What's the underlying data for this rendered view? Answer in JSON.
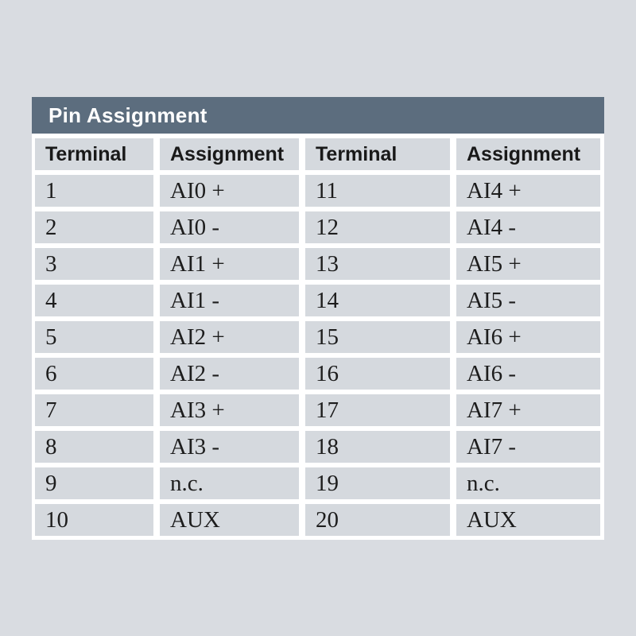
{
  "title": "Pin Assignment",
  "table": {
    "headers": [
      "Terminal",
      "Assignment",
      "Terminal",
      "Assignment"
    ],
    "rows": [
      [
        "1",
        "AI0 +",
        "11",
        "AI4 +"
      ],
      [
        "2",
        "AI0 -",
        "12",
        "AI4 -"
      ],
      [
        "3",
        "AI1 +",
        "13",
        "AI5 +"
      ],
      [
        "4",
        "AI1 -",
        "14",
        "AI5 -"
      ],
      [
        "5",
        "AI2 +",
        "15",
        "AI6 +"
      ],
      [
        "6",
        "AI2 -",
        "16",
        "AI6 -"
      ],
      [
        "7",
        "AI3 +",
        "17",
        "AI7 +"
      ],
      [
        "8",
        "AI3 -",
        "18",
        "AI7 -"
      ],
      [
        "9",
        "n.c.",
        "19",
        "n.c."
      ],
      [
        "10",
        "AUX",
        "20",
        "AUX"
      ]
    ]
  },
  "colors": {
    "page_bg": "#d9dce1",
    "title_bar_bg": "#5c6d7e",
    "title_text": "#ffffff",
    "cell_bg": "#d5d9de",
    "separator": "#ffffff",
    "cell_text": "#1d1d1d",
    "header_text": "#191919"
  }
}
